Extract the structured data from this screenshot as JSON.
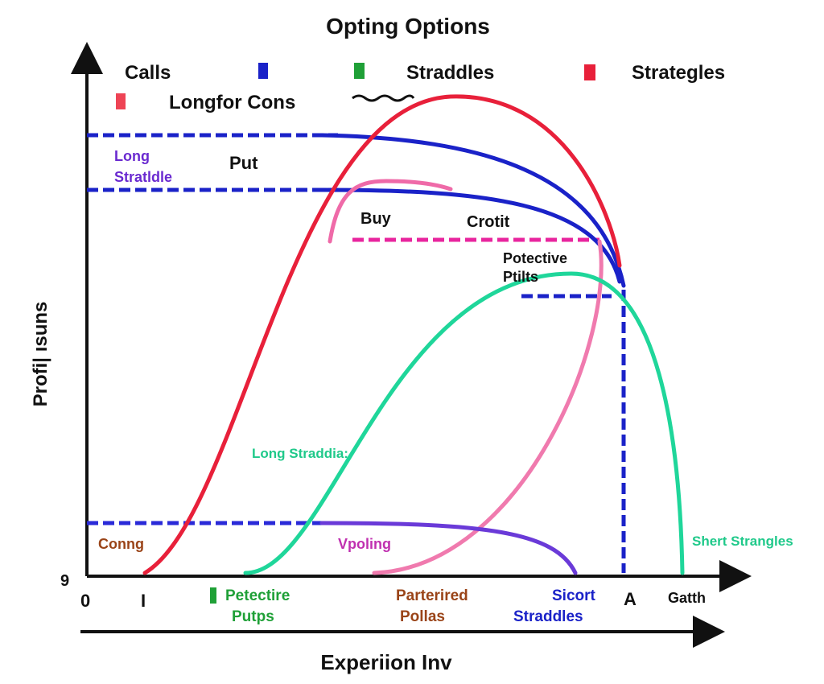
{
  "title": "Opting Options",
  "legend": [
    "Calls",
    "Straddles",
    "Strategles",
    "Longfor Cons"
  ],
  "axes": {
    "y_label": "Profi| ısuns",
    "x_label": "Experiion Inv",
    "origin_y": "9"
  },
  "annotations": {
    "long_straddle": [
      "Long",
      "Stratldle"
    ],
    "put": "Put",
    "buy": "Buy",
    "credit": "Crotit",
    "protective": [
      "Potective",
      "Ptilts"
    ],
    "long_straddle_2": "Long Straddia:",
    "conng": "Conng",
    "vpoling": "Vpoling",
    "short_strangles": "Shert Strangles"
  },
  "x_labels": [
    [
      "0"
    ],
    [
      "I"
    ],
    [
      "Petectire",
      "Putps"
    ],
    [
      "Parterired",
      "Pollas"
    ],
    [
      "Sicort",
      "Straddles"
    ],
    [
      "A"
    ],
    [
      "Gatth"
    ]
  ]
}
